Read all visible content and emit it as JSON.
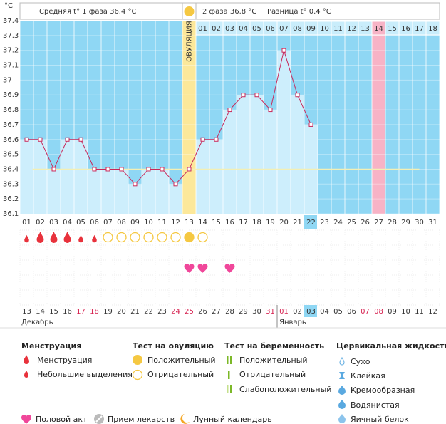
{
  "chart_data": {
    "type": "line",
    "y_label": "°C",
    "header": {
      "phase1": "Средняя t° 1 фаза  36.4 °C",
      "phase2": "2 фаза  36.8 °C",
      "difference": "Разница t°  0.4 °C"
    },
    "ovulation_label": "ОВУЛЯЦИЯ",
    "categories": [
      "01",
      "02",
      "03",
      "04",
      "05",
      "06",
      "07",
      "08",
      "09",
      "10",
      "11",
      "12",
      "13",
      "14",
      "15",
      "16",
      "17",
      "18",
      "19",
      "20",
      "21",
      "22",
      "23",
      "24",
      "25",
      "26",
      "27",
      "28",
      "29",
      "30",
      "31"
    ],
    "values": [
      36.6,
      36.6,
      36.4,
      36.6,
      36.6,
      36.4,
      36.4,
      36.4,
      36.3,
      36.4,
      36.4,
      36.3,
      36.4,
      36.6,
      36.6,
      36.8,
      36.9,
      36.9,
      36.8,
      37.2,
      36.9,
      36.7,
      null,
      null,
      null,
      null,
      null,
      null,
      null,
      null,
      null
    ],
    "color": "#c8285a",
    "phase2_start": "14",
    "phase2_days": [
      "01",
      "02",
      "03",
      "04",
      "05",
      "06",
      "07",
      "08",
      "09",
      "10",
      "11",
      "12",
      "13",
      "14",
      "15",
      "16",
      "17",
      "18"
    ],
    "ovulation_day": "13",
    "marked_day": "27",
    "today": "22",
    "coverline": 36.4,
    "ylim": [
      36.1,
      37.4
    ],
    "yticks": [
      36.1,
      36.2,
      36.3,
      36.4,
      36.5,
      36.6,
      36.7,
      36.8,
      36.9,
      37,
      37.1,
      37.2,
      37.3,
      37.4
    ],
    "dates": [
      "13",
      "14",
      "15",
      "16",
      "17",
      "18",
      "19",
      "20",
      "21",
      "22",
      "23",
      "24",
      "25",
      "26",
      "27",
      "28",
      "29",
      "30",
      "31",
      "01",
      "02",
      "03",
      "04",
      "05",
      "06",
      "07",
      "08",
      "09",
      "10",
      "11",
      "12"
    ],
    "weekend": [
      false,
      false,
      false,
      false,
      true,
      true,
      false,
      false,
      false,
      false,
      false,
      true,
      true,
      false,
      false,
      false,
      false,
      false,
      true,
      true,
      false,
      false,
      false,
      false,
      false,
      true,
      true,
      false,
      false,
      false,
      false
    ],
    "months": [
      "Декабрь",
      "Январь"
    ],
    "month_break": "01",
    "menstruation": [
      "small",
      "large",
      "large",
      "large",
      "small",
      "small",
      null,
      null,
      null,
      null,
      null,
      null,
      null,
      null,
      null,
      null,
      null,
      null,
      null,
      null,
      null,
      null,
      null,
      null,
      null,
      null,
      null,
      null,
      null,
      null,
      null
    ],
    "ovulation_test": [
      null,
      null,
      null,
      null,
      null,
      null,
      "negative",
      "negative",
      "negative",
      "negative",
      "negative",
      "negative",
      "positive",
      "negative",
      null,
      null,
      null,
      null,
      null,
      null,
      null,
      null,
      null,
      null,
      null,
      null,
      null,
      null,
      null,
      null,
      null
    ],
    "intercourse": [
      false,
      false,
      false,
      false,
      false,
      false,
      false,
      false,
      false,
      false,
      false,
      false,
      true,
      true,
      false,
      true,
      false,
      false,
      false,
      false,
      false,
      false,
      false,
      false,
      false,
      false,
      false,
      false,
      false,
      false,
      false
    ]
  },
  "legend": {
    "menstruation": {
      "title": "Менструация",
      "items": [
        "Менструация",
        "Небольшие выделения"
      ]
    },
    "ovulation_test": {
      "title": "Тест на овуляцию",
      "items": [
        "Положительный",
        "Отрицательный"
      ]
    },
    "pregnancy_test": {
      "title": "Тест на беременность",
      "items": [
        "Положительный",
        "Отрицательный",
        "Слабоположительный"
      ]
    },
    "cervical_fluid": {
      "title": "Цервикальная жидкость",
      "items": [
        "Сухо",
        "Клейкая",
        "Кремообразная",
        "Водянистая",
        "Яичный белок"
      ]
    },
    "other": [
      "Половой акт",
      "Прием лекарств",
      "Лунный календарь"
    ]
  }
}
